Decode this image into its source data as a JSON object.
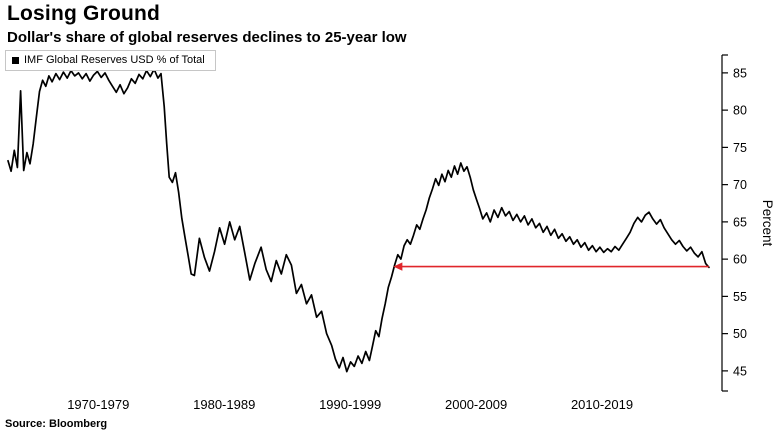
{
  "header": {
    "title": "Losing Ground",
    "subtitle": "Dollar's share of global reserves declines to 25-year low"
  },
  "legend": {
    "label": "IMF Global Reserves USD % of Total",
    "marker_color": "#000000"
  },
  "footer": {
    "source": "Source: Bloomberg"
  },
  "chart_data": {
    "type": "line",
    "title": "Losing Ground",
    "subtitle": "Dollar's share of global reserves declines to 25-year low",
    "ylabel": "Percent",
    "ylim": [
      42.3,
      87.4
    ],
    "yticks": [
      45,
      50,
      55,
      60,
      65,
      70,
      75,
      80,
      85
    ],
    "xlim": [
      1965.3,
      2021.2
    ],
    "xticks": [
      {
        "year": 1970,
        "label": "1970-1979"
      },
      {
        "year": 1980,
        "label": "1980-1989"
      },
      {
        "year": 1990,
        "label": "1990-1999"
      },
      {
        "year": 2000,
        "label": "2000-2009"
      },
      {
        "year": 2010,
        "label": "2010-2019"
      }
    ],
    "grid": false,
    "legend_position": "top-left",
    "axis_side": "right",
    "series": [
      {
        "name": "IMF Global Reserves USD % of Total",
        "color": "#000000",
        "points": [
          [
            1965.3,
            73.2
          ],
          [
            1965.55,
            71.8
          ],
          [
            1965.8,
            74.6
          ],
          [
            1966.05,
            72.3
          ],
          [
            1966.3,
            82.6
          ],
          [
            1966.55,
            71.9
          ],
          [
            1966.8,
            74.3
          ],
          [
            1967.05,
            72.8
          ],
          [
            1967.3,
            75.5
          ],
          [
            1967.55,
            79.0
          ],
          [
            1967.8,
            82.5
          ],
          [
            1968.05,
            84.0
          ],
          [
            1968.3,
            83.2
          ],
          [
            1968.55,
            84.6
          ],
          [
            1968.8,
            83.8
          ],
          [
            1969.1,
            84.9
          ],
          [
            1969.4,
            84.1
          ],
          [
            1969.7,
            85.1
          ],
          [
            1970.0,
            84.3
          ],
          [
            1970.3,
            85.3
          ],
          [
            1970.6,
            84.6
          ],
          [
            1970.9,
            85.0
          ],
          [
            1971.2,
            84.2
          ],
          [
            1971.5,
            84.9
          ],
          [
            1971.8,
            83.9
          ],
          [
            1972.1,
            84.7
          ],
          [
            1972.4,
            85.2
          ],
          [
            1972.7,
            84.4
          ],
          [
            1973.0,
            85.0
          ],
          [
            1973.3,
            84.0
          ],
          [
            1973.6,
            83.2
          ],
          [
            1973.9,
            82.4
          ],
          [
            1974.2,
            83.4
          ],
          [
            1974.5,
            82.2
          ],
          [
            1974.8,
            83.0
          ],
          [
            1975.1,
            84.2
          ],
          [
            1975.4,
            83.6
          ],
          [
            1975.7,
            84.8
          ],
          [
            1976.0,
            84.2
          ],
          [
            1976.3,
            85.3
          ],
          [
            1976.6,
            84.5
          ],
          [
            1976.9,
            85.5
          ],
          [
            1977.2,
            84.3
          ],
          [
            1977.45,
            84.9
          ],
          [
            1977.7,
            80.5
          ],
          [
            1977.9,
            75.5
          ],
          [
            1978.1,
            71.0
          ],
          [
            1978.35,
            70.3
          ],
          [
            1978.6,
            71.6
          ],
          [
            1978.85,
            69.0
          ],
          [
            1979.1,
            65.5
          ],
          [
            1979.35,
            63.0
          ],
          [
            1979.6,
            60.5
          ],
          [
            1979.85,
            58.0
          ],
          [
            1980.1,
            57.8
          ],
          [
            1980.5,
            62.8
          ],
          [
            1980.9,
            60.2
          ],
          [
            1981.3,
            58.4
          ],
          [
            1981.7,
            61.0
          ],
          [
            1982.1,
            64.2
          ],
          [
            1982.5,
            62.0
          ],
          [
            1982.9,
            65.0
          ],
          [
            1983.3,
            62.6
          ],
          [
            1983.7,
            64.4
          ],
          [
            1984.1,
            60.8
          ],
          [
            1984.5,
            57.2
          ],
          [
            1984.9,
            59.4
          ],
          [
            1985.4,
            61.6
          ],
          [
            1985.8,
            58.6
          ],
          [
            1986.2,
            57.0
          ],
          [
            1986.6,
            59.8
          ],
          [
            1987.0,
            58.0
          ],
          [
            1987.4,
            60.6
          ],
          [
            1987.8,
            59.2
          ],
          [
            1988.2,
            55.4
          ],
          [
            1988.6,
            56.6
          ],
          [
            1989.0,
            54.0
          ],
          [
            1989.4,
            55.2
          ],
          [
            1989.8,
            52.2
          ],
          [
            1990.2,
            53.0
          ],
          [
            1990.6,
            50.0
          ],
          [
            1991.0,
            48.4
          ],
          [
            1991.3,
            46.6
          ],
          [
            1991.6,
            45.4
          ],
          [
            1991.9,
            46.8
          ],
          [
            1992.2,
            44.9
          ],
          [
            1992.5,
            46.2
          ],
          [
            1992.8,
            45.6
          ],
          [
            1993.1,
            47.0
          ],
          [
            1993.4,
            46.0
          ],
          [
            1993.7,
            47.6
          ],
          [
            1994.0,
            46.4
          ],
          [
            1994.25,
            48.4
          ],
          [
            1994.5,
            50.4
          ],
          [
            1994.75,
            49.6
          ],
          [
            1995.0,
            52.0
          ],
          [
            1995.25,
            54.0
          ],
          [
            1995.5,
            56.2
          ],
          [
            1995.75,
            57.6
          ],
          [
            1996.0,
            59.2
          ],
          [
            1996.25,
            60.6
          ],
          [
            1996.5,
            60.0
          ],
          [
            1996.75,
            61.8
          ],
          [
            1997.0,
            62.6
          ],
          [
            1997.25,
            62.0
          ],
          [
            1997.5,
            63.2
          ],
          [
            1997.75,
            64.6
          ],
          [
            1998.0,
            64.0
          ],
          [
            1998.25,
            65.4
          ],
          [
            1998.5,
            66.6
          ],
          [
            1998.75,
            68.2
          ],
          [
            1999.0,
            69.4
          ],
          [
            1999.25,
            70.8
          ],
          [
            1999.5,
            69.9
          ],
          [
            1999.75,
            71.4
          ],
          [
            2000.0,
            70.4
          ],
          [
            2000.25,
            71.9
          ],
          [
            2000.5,
            71.0
          ],
          [
            2000.75,
            72.5
          ],
          [
            2001.0,
            71.4
          ],
          [
            2001.25,
            72.9
          ],
          [
            2001.5,
            71.8
          ],
          [
            2001.75,
            72.4
          ],
          [
            2002.0,
            71.0
          ],
          [
            2002.25,
            69.3
          ],
          [
            2002.5,
            68.0
          ],
          [
            2002.75,
            66.8
          ],
          [
            2003.0,
            65.4
          ],
          [
            2003.3,
            66.2
          ],
          [
            2003.6,
            65.0
          ],
          [
            2003.9,
            66.6
          ],
          [
            2004.2,
            65.6
          ],
          [
            2004.5,
            66.9
          ],
          [
            2004.8,
            65.8
          ],
          [
            2005.1,
            66.4
          ],
          [
            2005.4,
            65.2
          ],
          [
            2005.7,
            66.0
          ],
          [
            2006.0,
            65.0
          ],
          [
            2006.3,
            65.8
          ],
          [
            2006.6,
            64.6
          ],
          [
            2006.9,
            65.4
          ],
          [
            2007.2,
            64.2
          ],
          [
            2007.5,
            64.8
          ],
          [
            2007.8,
            63.6
          ],
          [
            2008.1,
            64.4
          ],
          [
            2008.4,
            63.2
          ],
          [
            2008.7,
            64.0
          ],
          [
            2009.0,
            62.8
          ],
          [
            2009.3,
            63.4
          ],
          [
            2009.6,
            62.4
          ],
          [
            2009.9,
            63.0
          ],
          [
            2010.2,
            62.0
          ],
          [
            2010.5,
            62.6
          ],
          [
            2010.8,
            61.6
          ],
          [
            2011.1,
            62.2
          ],
          [
            2011.4,
            61.2
          ],
          [
            2011.7,
            61.8
          ],
          [
            2012.0,
            61.0
          ],
          [
            2012.3,
            61.6
          ],
          [
            2012.6,
            60.9
          ],
          [
            2012.9,
            61.4
          ],
          [
            2013.2,
            61.0
          ],
          [
            2013.5,
            61.7
          ],
          [
            2013.8,
            61.2
          ],
          [
            2014.1,
            62.0
          ],
          [
            2014.4,
            62.8
          ],
          [
            2014.7,
            63.6
          ],
          [
            2015.0,
            64.8
          ],
          [
            2015.3,
            65.6
          ],
          [
            2015.6,
            65.0
          ],
          [
            2015.9,
            65.9
          ],
          [
            2016.2,
            66.3
          ],
          [
            2016.5,
            65.4
          ],
          [
            2016.8,
            64.7
          ],
          [
            2017.1,
            65.3
          ],
          [
            2017.4,
            64.2
          ],
          [
            2017.7,
            63.4
          ],
          [
            2018.0,
            62.6
          ],
          [
            2018.3,
            62.0
          ],
          [
            2018.6,
            62.5
          ],
          [
            2018.9,
            61.7
          ],
          [
            2019.2,
            61.1
          ],
          [
            2019.5,
            61.6
          ],
          [
            2019.8,
            60.8
          ],
          [
            2020.1,
            60.3
          ],
          [
            2020.4,
            61.0
          ],
          [
            2020.7,
            59.4
          ],
          [
            2020.95,
            58.9
          ]
        ]
      }
    ],
    "annotation": {
      "type": "arrow-line",
      "description": "horizontal red arrow pointing left from latest value back to mid-1990s level",
      "y": 59,
      "x_tip": 1995.9,
      "x_end": 2020.95,
      "direction": "left",
      "color": "#e0262b"
    }
  }
}
